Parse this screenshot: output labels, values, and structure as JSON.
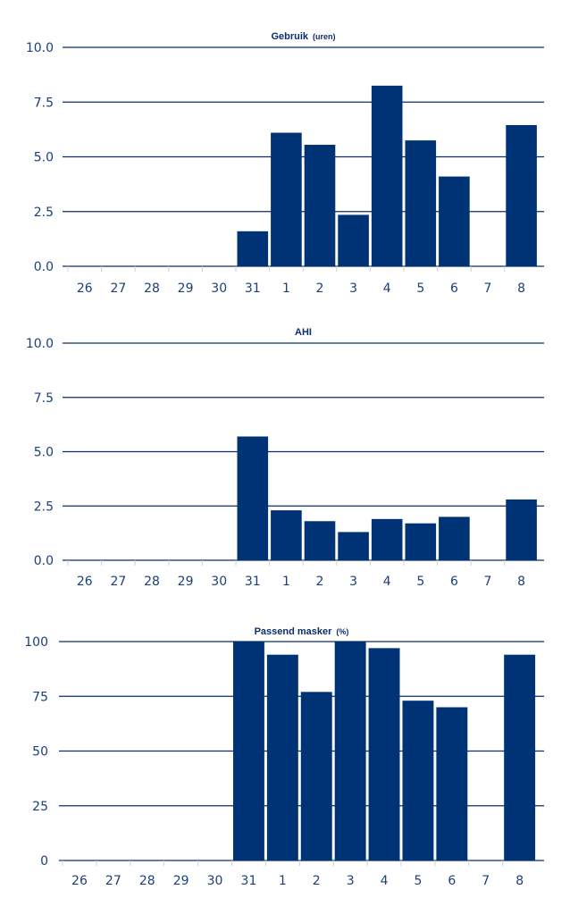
{
  "colors": {
    "bar": "#003375",
    "grid": "#0b2d6b",
    "text": "#1c3f78"
  },
  "chart_data": [
    {
      "type": "bar",
      "title": "Gebruik",
      "title_unit": "(uren)",
      "categories": [
        "26",
        "27",
        "28",
        "29",
        "30",
        "31",
        "1",
        "2",
        "3",
        "4",
        "5",
        "6",
        "7",
        "8"
      ],
      "values": [
        null,
        null,
        null,
        null,
        null,
        1.6,
        6.1,
        5.55,
        2.35,
        8.25,
        5.75,
        4.1,
        null,
        6.45
      ],
      "yticks": [
        "0.0",
        "2.5",
        "5.0",
        "7.5",
        "10.0"
      ],
      "ylim": [
        0,
        10
      ],
      "grid": true
    },
    {
      "type": "bar",
      "title": "AHI",
      "title_unit": "",
      "categories": [
        "26",
        "27",
        "28",
        "29",
        "30",
        "31",
        "1",
        "2",
        "3",
        "4",
        "5",
        "6",
        "7",
        "8"
      ],
      "values": [
        null,
        null,
        null,
        null,
        null,
        5.7,
        2.3,
        1.8,
        1.3,
        1.9,
        1.7,
        2.0,
        null,
        2.8
      ],
      "yticks": [
        "0.0",
        "2.5",
        "5.0",
        "7.5",
        "10.0"
      ],
      "ylim": [
        0,
        10
      ],
      "grid": true
    },
    {
      "type": "bar",
      "title": "Passend masker",
      "title_unit": "(%)",
      "categories": [
        "26",
        "27",
        "28",
        "29",
        "30",
        "31",
        "1",
        "2",
        "3",
        "4",
        "5",
        "6",
        "7",
        "8"
      ],
      "values": [
        null,
        null,
        null,
        null,
        null,
        100,
        94,
        77,
        100,
        97,
        73,
        70,
        null,
        94
      ],
      "yticks": [
        "0",
        "25",
        "50",
        "75",
        "100"
      ],
      "ylim": [
        0,
        100
      ],
      "grid": true
    }
  ]
}
